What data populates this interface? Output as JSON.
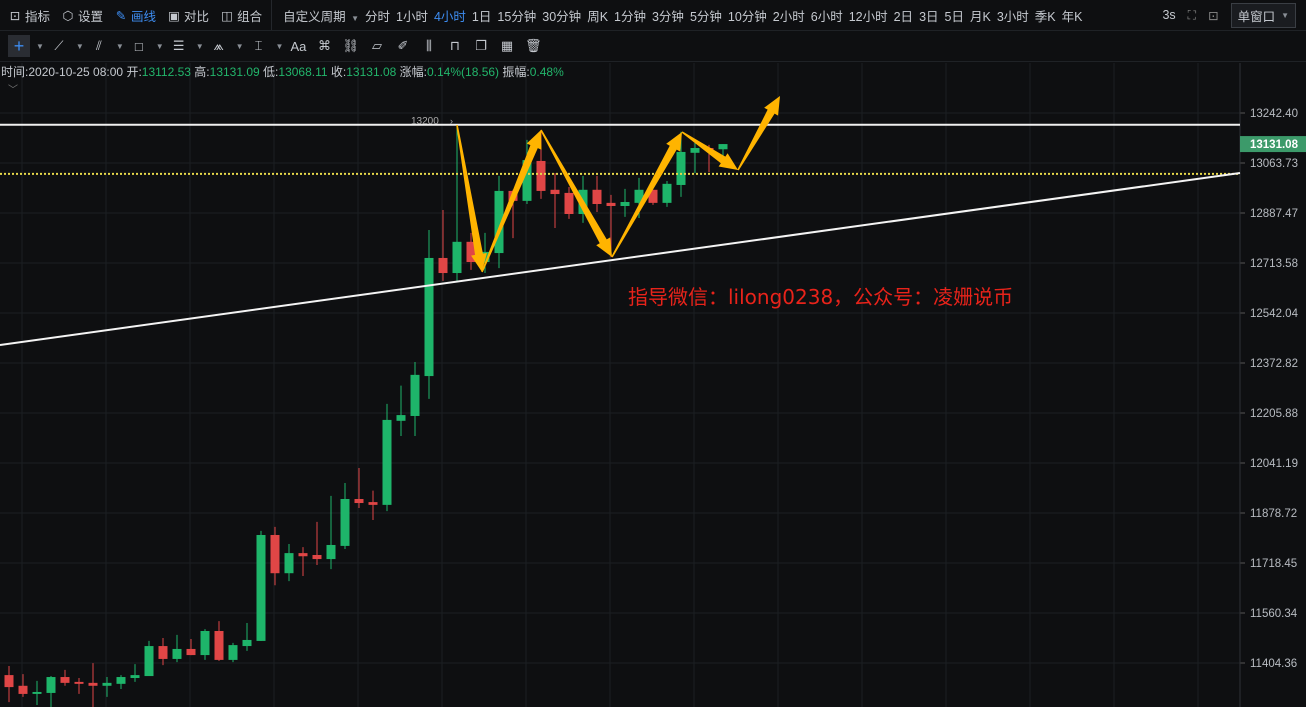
{
  "toolbar": {
    "left": [
      {
        "label": "指标",
        "icon": "chart-line-icon"
      },
      {
        "label": "设置",
        "icon": "gear-icon"
      },
      {
        "label": "画线",
        "icon": "pencil-icon",
        "active": true
      },
      {
        "label": "对比",
        "icon": "compare-icon"
      },
      {
        "label": "组合",
        "icon": "layout-icon"
      }
    ],
    "custom_period": "自定义周期",
    "periods": [
      "分时",
      "1小时",
      "4小时",
      "1日",
      "15分钟",
      "30分钟",
      "周K",
      "1分钟",
      "3分钟",
      "5分钟",
      "10分钟",
      "2小时",
      "6小时",
      "12小时",
      "2日",
      "3日",
      "5日",
      "月K",
      "3小时",
      "季K",
      "年K"
    ],
    "active_period": "4小时",
    "refresh": "3s",
    "window_mode": "单窗口"
  },
  "drawing_tools": [
    "crosshair-icon",
    "trend-line-icon",
    "parallel-line-icon",
    "rectangle-icon",
    "horizontal-lines-icon",
    "pattern-icon",
    "measure-icon",
    "text-icon",
    "fib-icon",
    "link-icon",
    "ruler-icon",
    "brush-icon",
    "candle-pattern-icon",
    "lock-icon",
    "copy-icon",
    "template-icon",
    "trash-icon"
  ],
  "text_tool_label": "Aa",
  "info": {
    "time_label": "时间:",
    "time": "2020-10-25 08:00",
    "open_label": "开:",
    "open": "13112.53",
    "high_label": "高:",
    "high": "13131.09",
    "low_label": "低:",
    "low": "13068.11",
    "close_label": "收:",
    "close": "13131.08",
    "change_label": "涨幅:",
    "change": "0.14%(18.56)",
    "amp_label": "振幅:",
    "amp": "0.48%"
  },
  "watermark": "指导微信：lilong0238，公众号：凌姗说币",
  "colors": {
    "up": "#1eb56a",
    "down": "#e04646",
    "arrow": "#ffb400",
    "last_price_bg": "#3c9a6a",
    "dotted": "#e6d84a"
  },
  "chart_data": {
    "type": "candlestick",
    "scale": "log",
    "y_ticks": [
      "13242.40",
      "13063.73",
      "12887.47",
      "12713.58",
      "12542.04",
      "12372.82",
      "12205.88",
      "12041.19",
      "11878.72",
      "11718.45",
      "11560.34",
      "11404.36"
    ],
    "last_price": "13131.08",
    "high_marker": "13200",
    "horizontal_line": 13200,
    "dotted_line": 13025,
    "candles": [
      [
        11367,
        11330,
        11395,
        11284
      ],
      [
        11334,
        11309,
        11370,
        11300
      ],
      [
        11309,
        11315,
        11349,
        11275
      ],
      [
        11312,
        11361,
        11364,
        11269
      ],
      [
        11361,
        11343,
        11383,
        11334
      ],
      [
        11346,
        11340,
        11358,
        11309
      ],
      [
        11343,
        11334,
        11404,
        11269
      ],
      [
        11334,
        11343,
        11361,
        11300
      ],
      [
        11340,
        11361,
        11367,
        11324
      ],
      [
        11358,
        11367,
        11401,
        11346
      ],
      [
        11364,
        11457,
        11473,
        11364
      ],
      [
        11457,
        11417,
        11482,
        11398
      ],
      [
        11417,
        11448,
        11492,
        11407
      ],
      [
        11448,
        11429,
        11479,
        11429
      ],
      [
        11429,
        11504,
        11510,
        11414
      ],
      [
        11504,
        11414,
        11535,
        11411
      ],
      [
        11414,
        11460,
        11467,
        11407
      ],
      [
        11457,
        11476,
        11529,
        11442
      ],
      [
        11473,
        11808,
        11821,
        11473
      ],
      [
        11808,
        11686,
        11834,
        11648
      ],
      [
        11686,
        11750,
        11779,
        11661
      ],
      [
        11750,
        11740,
        11769,
        11677
      ],
      [
        11744,
        11731,
        11850,
        11712
      ],
      [
        11731,
        11776,
        11934,
        11699
      ],
      [
        11773,
        11924,
        11976,
        11763
      ],
      [
        11924,
        11911,
        12025,
        11895
      ],
      [
        11914,
        11905,
        11951,
        11856
      ],
      [
        11905,
        12183,
        12236,
        11885
      ],
      [
        12180,
        12199,
        12297,
        12130
      ],
      [
        12196,
        12333,
        12376,
        12130
      ],
      [
        12329,
        12731,
        12828,
        12253
      ],
      [
        12731,
        12679,
        12898,
        12652
      ],
      [
        12679,
        12787,
        13200,
        12652
      ],
      [
        12787,
        12717,
        12818,
        12690
      ],
      [
        12717,
        12752,
        12818,
        12679
      ],
      [
        12748,
        12965,
        13018,
        12696
      ],
      [
        12965,
        12930,
        12969,
        12800
      ],
      [
        12930,
        13074,
        13146,
        12919
      ],
      [
        13071,
        12965,
        13182,
        12937
      ],
      [
        12969,
        12954,
        13028,
        12835
      ],
      [
        12958,
        12884,
        12979,
        12867
      ],
      [
        12884,
        12969,
        13018,
        12853
      ],
      [
        12969,
        12919,
        13018,
        12891
      ],
      [
        12923,
        12912,
        12951,
        12734
      ],
      [
        12912,
        12926,
        12972,
        12874
      ],
      [
        12923,
        12969,
        13011,
        12870
      ],
      [
        12969,
        12923,
        12969,
        12916
      ],
      [
        12923,
        12990,
        13000,
        12909
      ],
      [
        12986,
        13103,
        13175,
        12944
      ],
      [
        13100,
        13117,
        13135,
        13028
      ],
      [
        13117,
        13110,
        13128,
        13032
      ],
      [
        13112.53,
        13131.08,
        13131.09,
        13068.11
      ]
    ]
  }
}
